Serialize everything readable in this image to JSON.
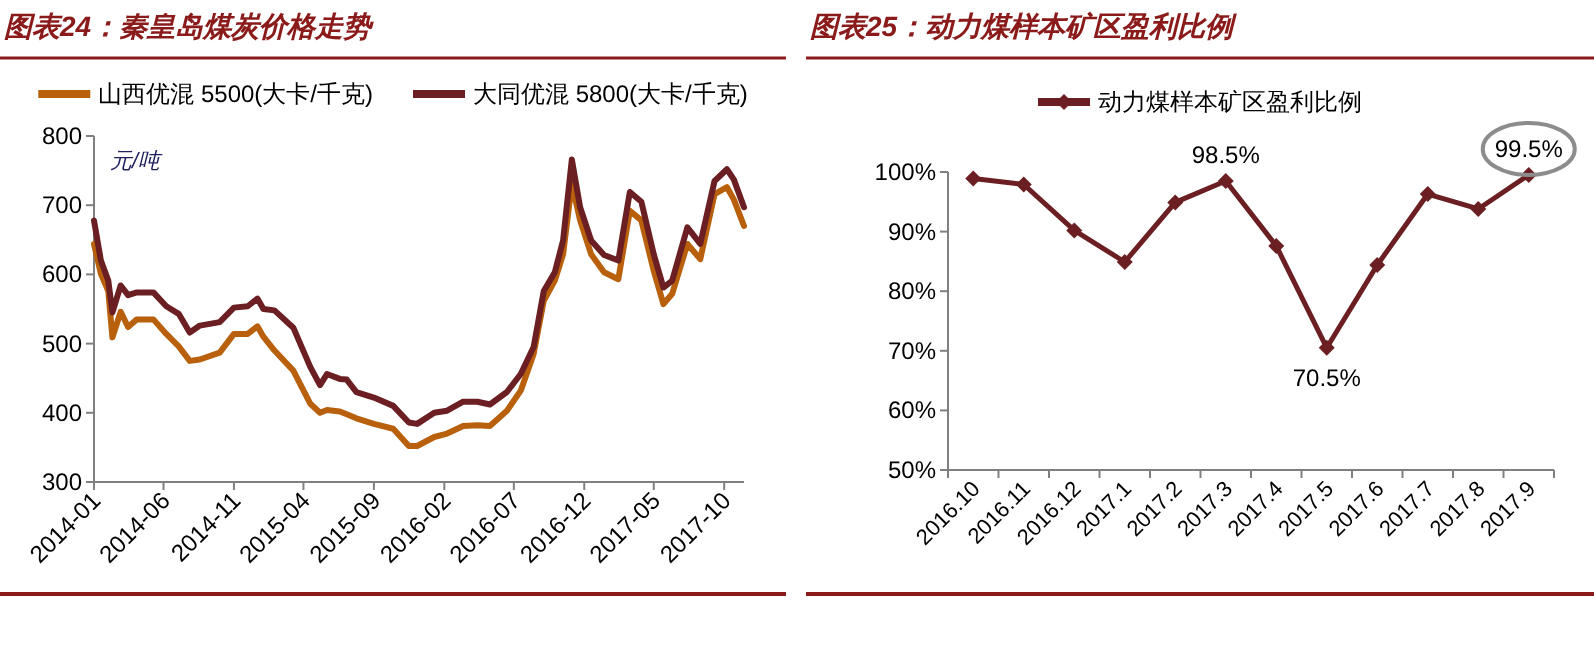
{
  "chart_data": [
    {
      "type": "line",
      "title": "图表24：秦皇岛煤炭价格走势",
      "ylabel": "元/吨",
      "legend": "top",
      "x": [
        "2014-01-01",
        "2014-01-16",
        "2014-02-01",
        "2014-02-10",
        "2014-02-28",
        "2014-03-16",
        "2014-04-04",
        "2014-05-10",
        "2014-06-07",
        "2014-07-04",
        "2014-07-28",
        "2014-08-19",
        "2014-10-01",
        "2014-11-01",
        "2014-12-01",
        "2014-12-22",
        "2015-01-04",
        "2015-01-28",
        "2015-03-10",
        "2015-04-16",
        "2015-05-07",
        "2015-05-22",
        "2015-06-19",
        "2015-07-04",
        "2015-07-25",
        "2015-09-01",
        "2015-10-13",
        "2015-11-16",
        "2015-12-04",
        "2016-01-10",
        "2016-02-07",
        "2016-03-13",
        "2016-04-13",
        "2016-05-10",
        "2016-06-16",
        "2016-07-16",
        "2016-08-13",
        "2016-09-04",
        "2016-09-28",
        "2016-10-16",
        "2016-11-04",
        "2016-11-22",
        "2016-12-16",
        "2017-01-13",
        "2017-02-13",
        "2017-03-10",
        "2017-04-04",
        "2017-05-01",
        "2017-05-22",
        "2017-06-10",
        "2017-07-13",
        "2017-08-10",
        "2017-09-10",
        "2017-10-07",
        "2017-10-22",
        "2017-11-13"
      ],
      "xlim": [
        "2014-01-01",
        "2017-11-13"
      ],
      "xticks": [
        "2014-01",
        "2014-06",
        "2014-11",
        "2015-04",
        "2015-09",
        "2016-02",
        "2016-07",
        "2016-12",
        "2017-05",
        "2017-10"
      ],
      "ylim": [
        300,
        800
      ],
      "yticks": [
        300,
        400,
        500,
        600,
        700,
        800
      ],
      "series": [
        {
          "name": "山西优混 5500(大卡/千克)",
          "color": "#b8600c",
          "values": [
            644,
            601,
            576,
            509,
            546,
            524,
            535,
            535,
            514,
            496,
            475,
            477,
            487,
            514,
            514,
            525,
            510,
            490,
            461,
            413,
            400,
            404,
            402,
            398,
            392,
            384,
            377,
            352,
            352,
            365,
            370,
            381,
            382,
            381,
            403,
            432,
            485,
            562,
            591,
            629,
            731,
            678,
            629,
            603,
            593,
            692,
            678,
            605,
            557,
            572,
            644,
            622,
            716,
            726,
            708,
            670
          ]
        },
        {
          "name": "大同优混 5800(大卡/千克)",
          "color": "#6b1f22",
          "values": [
            678,
            620,
            591,
            545,
            584,
            570,
            574,
            574,
            554,
            543,
            516,
            526,
            531,
            552,
            554,
            565,
            550,
            548,
            523,
            466,
            440,
            456,
            449,
            448,
            430,
            422,
            410,
            386,
            384,
            400,
            403,
            416,
            416,
            412,
            430,
            456,
            495,
            576,
            603,
            649,
            766,
            697,
            649,
            628,
            620,
            719,
            705,
            629,
            581,
            591,
            668,
            644,
            735,
            752,
            737,
            697
          ]
        }
      ]
    },
    {
      "type": "line",
      "title": "图表25：动力煤样本矿区盈利比例",
      "legend": "top",
      "marker": "diamond",
      "categories": [
        "2016.10",
        "2016.11",
        "2016.12",
        "2017.1",
        "2017.2",
        "2017.3",
        "2017.4",
        "2017.5",
        "2017.6",
        "2017.7",
        "2017.8",
        "2017.9"
      ],
      "ylim": [
        50,
        100
      ],
      "yticks": [
        {
          "value": 50,
          "label": "50%"
        },
        {
          "value": 60,
          "label": "60%"
        },
        {
          "value": 70,
          "label": "70%"
        },
        {
          "value": 80,
          "label": "80%"
        },
        {
          "value": 90,
          "label": "90%"
        },
        {
          "value": 100,
          "label": "100%"
        }
      ],
      "series": [
        {
          "name": "动力煤样本矿区盈利比例",
          "color": "#6b1f22",
          "values": [
            98.9,
            97.9,
            90.2,
            84.9,
            94.9,
            98.5,
            87.6,
            70.5,
            84.4,
            96.3,
            93.8,
            99.5
          ],
          "value_labels": [
            null,
            null,
            null,
            null,
            null,
            "98.5%",
            null,
            "70.5%",
            null,
            null,
            null,
            "99.5%"
          ]
        }
      ]
    }
  ]
}
